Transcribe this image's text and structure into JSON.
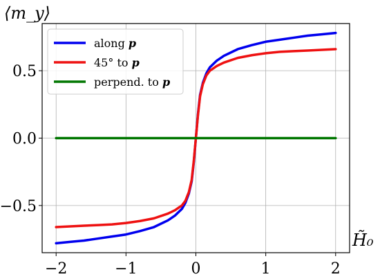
{
  "chart_data": {
    "type": "line",
    "xlabel": "H̃₀",
    "ylabel": "⟨m_y⟩",
    "xlim": [
      -2.2,
      2.2
    ],
    "ylim": [
      -0.85,
      0.85
    ],
    "x_ticks": [
      -2,
      -1,
      0,
      1,
      2
    ],
    "x_tick_labels": [
      "−2",
      "−1",
      "0",
      "1",
      "2"
    ],
    "y_ticks": [
      -0.5,
      0.0,
      0.5
    ],
    "y_tick_labels": [
      "−0.5",
      "0.0",
      "0.5"
    ],
    "grid": true,
    "legend_position": "top-left",
    "x": [
      -2,
      -1.8,
      -1.6,
      -1.4,
      -1.2,
      -1.0,
      -0.8,
      -0.6,
      -0.4,
      -0.3,
      -0.2,
      -0.15,
      -0.1,
      -0.06,
      -0.03,
      0,
      0.03,
      0.06,
      0.1,
      0.15,
      0.2,
      0.3,
      0.4,
      0.6,
      0.8,
      1.0,
      1.2,
      1.4,
      1.6,
      1.8,
      2
    ],
    "series": [
      {
        "name": "along p",
        "color": "#0000ee",
        "values": [
          -0.78,
          -0.77,
          -0.76,
          -0.745,
          -0.73,
          -0.715,
          -0.69,
          -0.66,
          -0.61,
          -0.575,
          -0.525,
          -0.48,
          -0.41,
          -0.32,
          -0.18,
          0,
          0.18,
          0.32,
          0.41,
          0.48,
          0.525,
          0.575,
          0.61,
          0.66,
          0.69,
          0.715,
          0.73,
          0.745,
          0.76,
          0.77,
          0.78
        ]
      },
      {
        "name": "45° to p",
        "color": "#ee1111",
        "values": [
          -0.66,
          -0.655,
          -0.65,
          -0.645,
          -0.64,
          -0.63,
          -0.615,
          -0.595,
          -0.56,
          -0.535,
          -0.5,
          -0.465,
          -0.4,
          -0.31,
          -0.17,
          0,
          0.17,
          0.31,
          0.4,
          0.465,
          0.5,
          0.535,
          0.56,
          0.595,
          0.615,
          0.63,
          0.64,
          0.645,
          0.65,
          0.655,
          0.66
        ]
      },
      {
        "name": "perpend. to p",
        "color": "#007700",
        "values": [
          0,
          0,
          0,
          0,
          0,
          0,
          0,
          0,
          0,
          0,
          0,
          0,
          0,
          0,
          0,
          0,
          0,
          0,
          0,
          0,
          0,
          0,
          0,
          0,
          0,
          0,
          0,
          0,
          0,
          0,
          0
        ]
      }
    ],
    "legend_labels": [
      {
        "prefix": "along ",
        "bold": "p"
      },
      {
        "prefix": "45° to ",
        "bold": "p"
      },
      {
        "prefix": "perpend. to ",
        "bold": "p"
      }
    ]
  }
}
